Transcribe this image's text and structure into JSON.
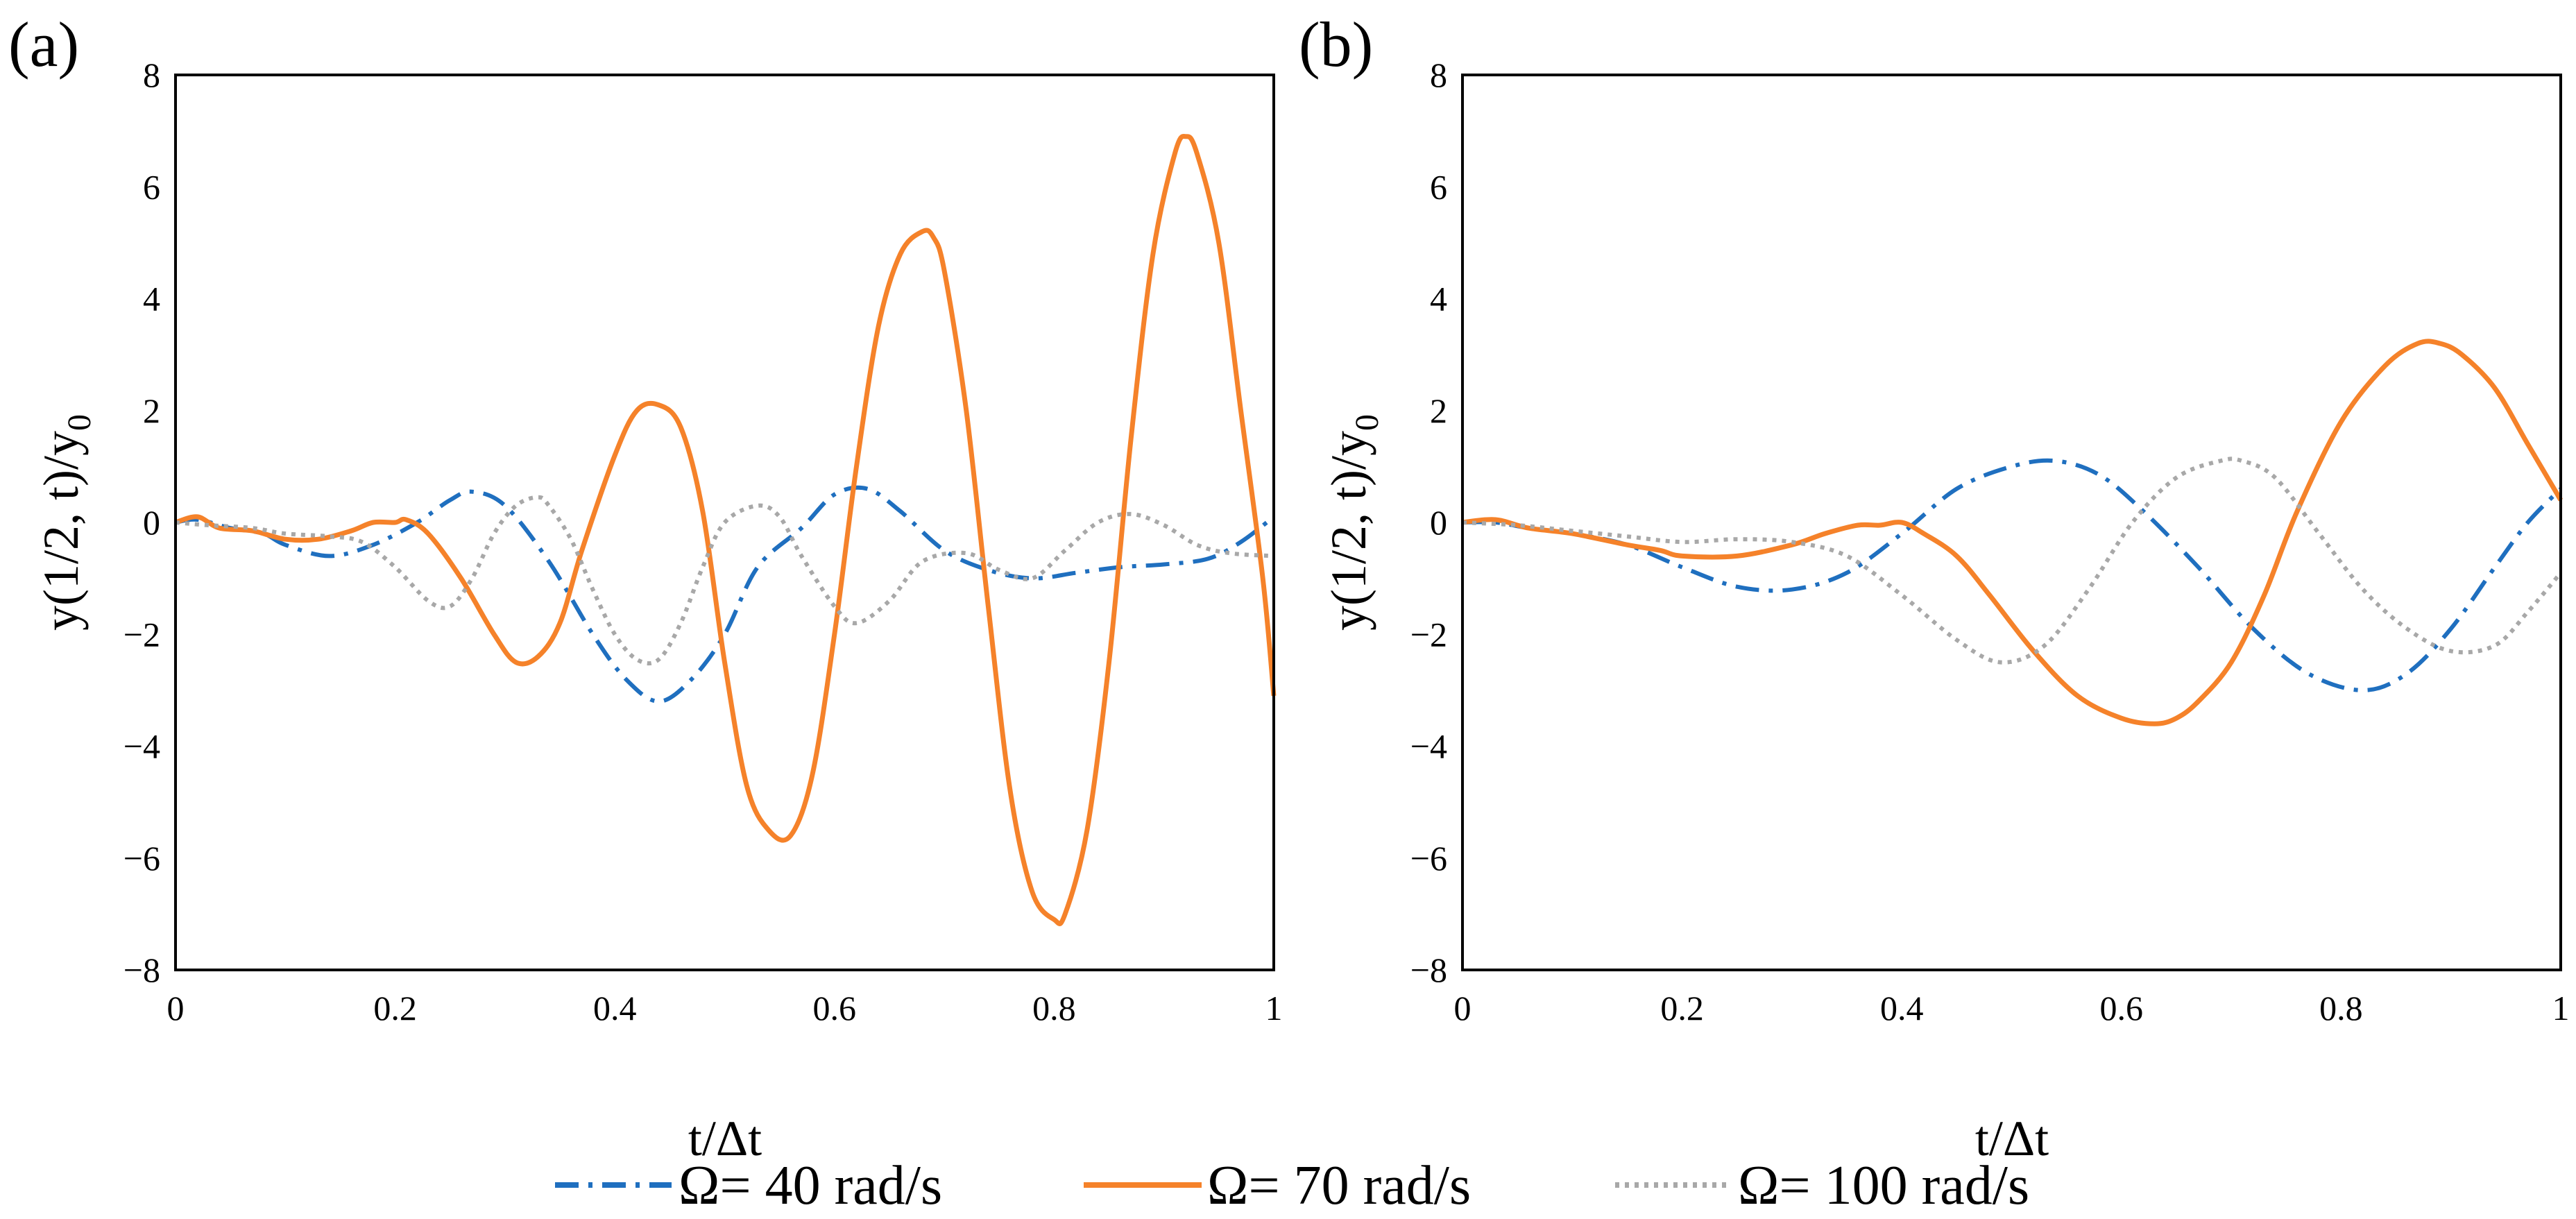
{
  "legend": {
    "items": [
      {
        "label": "Ω= 40 rad/s",
        "color": "#1f6fbf",
        "dash": "dash-dot"
      },
      {
        "label": "Ω= 70 rad/s",
        "color": "#f5822a",
        "dash": "solid"
      },
      {
        "label": "Ω= 100 rad/s",
        "color": "#a8a8a8",
        "dash": "dotted"
      }
    ]
  },
  "chart_data": [
    {
      "panel": "(a)",
      "type": "line",
      "xlabel": "t/Δt",
      "ylabel": "y(1/2, t)/y",
      "ylabel_sub": "0",
      "xlim": [
        0,
        1
      ],
      "ylim": [
        -8,
        8
      ],
      "xticks": [
        "0",
        "0.2",
        "0.4",
        "0.6",
        "0.8",
        "1"
      ],
      "xtick_values": [
        0,
        0.2,
        0.4,
        0.6,
        0.8,
        1
      ],
      "yticks": [
        "8",
        "6",
        "4",
        "2",
        "0",
        "−2",
        "−4",
        "−6",
        "−8"
      ],
      "ytick_values": [
        8,
        6,
        4,
        2,
        0,
        -2,
        -4,
        -6,
        -8
      ],
      "grid": false,
      "series": [
        {
          "name": "Ω= 40 rad/s",
          "color": "#1f6fbf",
          "dash": "dash-dot",
          "x": [
            0,
            0.02,
            0.05,
            0.08,
            0.1,
            0.14,
            0.18,
            0.22,
            0.25,
            0.27,
            0.3,
            0.34,
            0.38,
            0.41,
            0.44,
            0.47,
            0.5,
            0.53,
            0.57,
            0.6,
            0.63,
            0.66,
            0.7,
            0.74,
            0.78,
            0.82,
            0.86,
            0.9,
            0.94,
            0.97,
            1.0
          ],
          "y": [
            0,
            0.05,
            -0.1,
            -0.2,
            -0.4,
            -0.6,
            -0.4,
            0.0,
            0.4,
            0.55,
            0.3,
            -0.7,
            -2.0,
            -2.8,
            -3.2,
            -2.8,
            -2.0,
            -0.8,
            -0.1,
            0.5,
            0.6,
            0.2,
            -0.5,
            -0.85,
            -1.0,
            -0.9,
            -0.8,
            -0.75,
            -0.65,
            -0.35,
            0.1
          ]
        },
        {
          "name": "Ω= 70 rad/s",
          "color": "#f5822a",
          "dash": "solid",
          "x": [
            0,
            0.02,
            0.04,
            0.07,
            0.1,
            0.13,
            0.16,
            0.18,
            0.2,
            0.21,
            0.23,
            0.26,
            0.29,
            0.31,
            0.33,
            0.35,
            0.37,
            0.4,
            0.42,
            0.44,
            0.46,
            0.48,
            0.5,
            0.52,
            0.54,
            0.56,
            0.58,
            0.6,
            0.62,
            0.64,
            0.66,
            0.68,
            0.69,
            0.7,
            0.72,
            0.74,
            0.76,
            0.78,
            0.8,
            0.81,
            0.83,
            0.85,
            0.87,
            0.89,
            0.91,
            0.92,
            0.93,
            0.95,
            0.97,
            0.99,
            1.0
          ],
          "y": [
            0,
            0.1,
            -0.1,
            -0.15,
            -0.3,
            -0.3,
            -0.15,
            0.0,
            0.0,
            0.05,
            -0.2,
            -1.0,
            -2.0,
            -2.5,
            -2.4,
            -1.8,
            -0.5,
            1.2,
            2.0,
            2.1,
            1.7,
            0.2,
            -2.5,
            -4.7,
            -5.5,
            -5.6,
            -4.5,
            -2.0,
            1.0,
            3.5,
            4.8,
            5.2,
            5.1,
            4.5,
            2.0,
            -1.5,
            -4.8,
            -6.6,
            -7.1,
            -7.0,
            -5.5,
            -2.5,
            1.5,
            4.8,
            6.6,
            6.9,
            6.6,
            5.0,
            2.0,
            -1.0,
            -3.1
          ]
        },
        {
          "name": "Ω= 100 rad/s",
          "color": "#a8a8a8",
          "dash": "dotted",
          "x": [
            0,
            0.03,
            0.07,
            0.1,
            0.14,
            0.17,
            0.2,
            0.23,
            0.25,
            0.27,
            0.29,
            0.31,
            0.33,
            0.34,
            0.36,
            0.38,
            0.4,
            0.42,
            0.44,
            0.46,
            0.48,
            0.5,
            0.53,
            0.55,
            0.57,
            0.6,
            0.62,
            0.65,
            0.68,
            0.72,
            0.75,
            0.78,
            0.81,
            0.84,
            0.87,
            0.9,
            0.93,
            0.96,
            1.0
          ],
          "y": [
            0,
            -0.05,
            -0.1,
            -0.2,
            -0.25,
            -0.35,
            -0.8,
            -1.4,
            -1.5,
            -1.0,
            -0.2,
            0.3,
            0.45,
            0.3,
            -0.3,
            -1.2,
            -2.0,
            -2.45,
            -2.45,
            -1.8,
            -0.8,
            0.0,
            0.3,
            0.1,
            -0.6,
            -1.5,
            -1.8,
            -1.4,
            -0.7,
            -0.55,
            -0.85,
            -1.0,
            -0.5,
            0.0,
            0.15,
            -0.05,
            -0.4,
            -0.55,
            -0.6
          ]
        }
      ]
    },
    {
      "panel": "(b)",
      "type": "line",
      "xlabel": "t/Δt",
      "ylabel": "y(1/2, t)/y",
      "ylabel_sub": "0",
      "xlim": [
        0,
        1
      ],
      "ylim": [
        -8,
        8
      ],
      "xticks": [
        "0",
        "0.2",
        "0.4",
        "0.6",
        "0.8",
        "1"
      ],
      "xtick_values": [
        0,
        0.2,
        0.4,
        0.6,
        0.8,
        1
      ],
      "yticks": [
        "8",
        "6",
        "4",
        "2",
        "0",
        "−2",
        "−4",
        "−6",
        "−8"
      ],
      "ytick_values": [
        8,
        6,
        4,
        2,
        0,
        -2,
        -4,
        -6,
        -8
      ],
      "grid": false,
      "series": [
        {
          "name": "Ω= 40 rad/s",
          "color": "#1f6fbf",
          "dash": "dash-dot",
          "x": [
            0,
            0.03,
            0.06,
            0.1,
            0.15,
            0.2,
            0.25,
            0.3,
            0.35,
            0.4,
            0.45,
            0.5,
            0.54,
            0.58,
            0.62,
            0.67,
            0.72,
            0.77,
            0.82,
            0.86,
            0.9,
            0.94,
            0.97,
            1.0
          ],
          "y": [
            0,
            0.0,
            -0.1,
            -0.2,
            -0.4,
            -0.8,
            -1.15,
            -1.2,
            -0.9,
            -0.2,
            0.6,
            1.0,
            1.1,
            0.85,
            0.2,
            -0.8,
            -1.9,
            -2.7,
            -3.0,
            -2.7,
            -1.9,
            -0.8,
            0.0,
            0.6
          ]
        },
        {
          "name": "Ω= 70 rad/s",
          "color": "#f5822a",
          "dash": "solid",
          "x": [
            0,
            0.03,
            0.06,
            0.1,
            0.15,
            0.18,
            0.2,
            0.25,
            0.3,
            0.33,
            0.36,
            0.38,
            0.4,
            0.42,
            0.45,
            0.48,
            0.52,
            0.56,
            0.6,
            0.63,
            0.65,
            0.67,
            0.7,
            0.73,
            0.76,
            0.8,
            0.84,
            0.87,
            0.89,
            0.91,
            0.94,
            0.97,
            1.0
          ],
          "y": [
            0,
            0.05,
            -0.1,
            -0.2,
            -0.4,
            -0.5,
            -0.6,
            -0.6,
            -0.4,
            -0.2,
            -0.05,
            -0.05,
            0.0,
            -0.2,
            -0.6,
            -1.3,
            -2.3,
            -3.1,
            -3.5,
            -3.6,
            -3.5,
            -3.2,
            -2.5,
            -1.3,
            0.2,
            1.8,
            2.8,
            3.2,
            3.2,
            3.0,
            2.4,
            1.4,
            0.4
          ]
        },
        {
          "name": "Ω= 100 rad/s",
          "color": "#a8a8a8",
          "dash": "dotted",
          "x": [
            0,
            0.05,
            0.1,
            0.15,
            0.2,
            0.25,
            0.3,
            0.35,
            0.4,
            0.45,
            0.49,
            0.53,
            0.57,
            0.61,
            0.65,
            0.69,
            0.71,
            0.74,
            0.78,
            0.82,
            0.86,
            0.9,
            0.94,
            0.97,
            1.0
          ],
          "y": [
            0,
            -0.05,
            -0.15,
            -0.25,
            -0.35,
            -0.3,
            -0.35,
            -0.6,
            -1.3,
            -2.1,
            -2.5,
            -2.2,
            -1.2,
            0.0,
            0.8,
            1.1,
            1.1,
            0.8,
            -0.2,
            -1.2,
            -1.9,
            -2.3,
            -2.2,
            -1.6,
            -0.9
          ]
        }
      ]
    }
  ]
}
